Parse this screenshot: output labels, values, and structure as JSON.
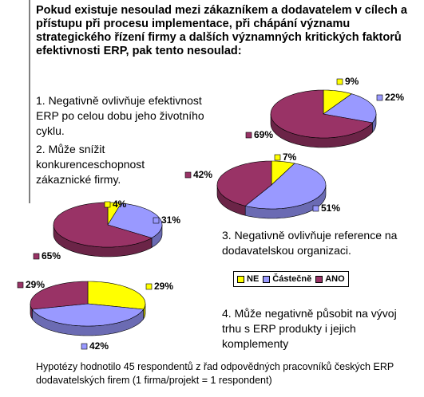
{
  "title": "Pokud existuje nesoulad mezi zákazníkem a dodavatelem v cílech a přístupu při procesu implementace, při chápání významu strategického řízení firmy a dalších významných kritických faktorů efektivnosti ERP, pak tento nesoulad:",
  "statements": [
    "1. Negativně ovlivňuje efektivnost ERP po celou dobu jeho životního cyklu.",
    "2. Může snížit konkurenceschopnost zákaznické firmy.",
    "3. Negativně ovlivňuje reference na dodavatelskou organizaci.",
    "4. Může negativně působit na vývoj trhu s ERP produkty i jejich komplementy"
  ],
  "note": "Hypotézy hodnotilo 45 respondentů z řad odpovědných pracovníků českých ERP dodavatelských firem (1 firma/projekt = 1 respondent)",
  "chart_data": [
    {
      "type": "pie",
      "categories": [
        "NE",
        "Částečně",
        "ANO"
      ],
      "values": [
        9,
        22,
        69
      ],
      "value_labels": [
        "9%",
        "22%",
        "69%"
      ],
      "colors": [
        "#ffff00",
        "#9999ff",
        "#993366"
      ]
    },
    {
      "type": "pie",
      "categories": [
        "NE",
        "Částečně",
        "ANO"
      ],
      "values": [
        7,
        51,
        42
      ],
      "value_labels": [
        "7%",
        "51%",
        "42%"
      ],
      "colors": [
        "#ffff00",
        "#9999ff",
        "#993366"
      ]
    },
    {
      "type": "pie",
      "categories": [
        "NE",
        "Částečně",
        "ANO"
      ],
      "values": [
        4,
        31,
        65
      ],
      "value_labels": [
        "4%",
        "31%",
        "65%"
      ],
      "colors": [
        "#ffff00",
        "#9999ff",
        "#993366"
      ]
    },
    {
      "type": "pie",
      "categories": [
        "NE",
        "Částečně",
        "ANO"
      ],
      "values": [
        29,
        42,
        29
      ],
      "value_labels": [
        "29%",
        "42%",
        "29%"
      ],
      "colors": [
        "#ffff00",
        "#9999ff",
        "#993366"
      ]
    }
  ]
}
